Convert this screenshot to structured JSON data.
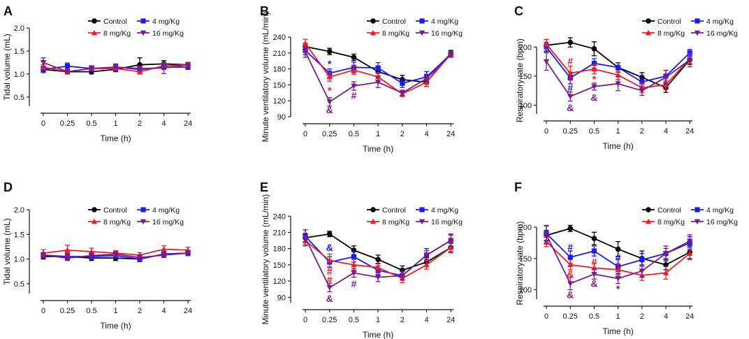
{
  "figure": {
    "legend_entries": [
      {
        "name": "Control",
        "color": "#000000",
        "marker": "circle"
      },
      {
        "name": "4 mg/Kg",
        "color": "#1a1aff",
        "marker": "square"
      },
      {
        "name": "8 mg/Kg",
        "color": "#ee1c25",
        "marker": "triangle-up"
      },
      {
        "name": "16 mg/Kg",
        "color": "#7b1b8a",
        "marker": "triangle-down"
      }
    ]
  },
  "chart_data": [
    {
      "panel": "A",
      "type": "line",
      "title": "",
      "xlabel": "Time (h)",
      "ylabel": "Tidal volume (mL)",
      "categories": [
        "0",
        "0.25",
        "0.5",
        "1",
        "2",
        "4",
        "24"
      ],
      "ylim": [
        0.3,
        2.0
      ],
      "yticks": [
        0.5,
        1.0,
        1.5,
        2.0
      ],
      "ytick_labels": [
        "0.5",
        "1.0",
        "1.5",
        "2.0"
      ],
      "legend_position": "top-right",
      "series": [
        {
          "name": "Control",
          "values": [
            1.1,
            1.05,
            1.05,
            1.1,
            1.2,
            1.22,
            1.2
          ],
          "errors": [
            0.05,
            0.05,
            0.05,
            0.05,
            0.15,
            0.07,
            0.05
          ]
        },
        {
          "name": "4 mg/Kg",
          "values": [
            1.1,
            1.17,
            1.12,
            1.15,
            1.1,
            1.15,
            1.15
          ],
          "errors": [
            0.07,
            0.07,
            0.06,
            0.05,
            0.05,
            0.05,
            0.05
          ]
        },
        {
          "name": "8 mg/Kg",
          "values": [
            1.15,
            1.05,
            1.12,
            1.12,
            1.05,
            1.18,
            1.2
          ],
          "errors": [
            0.05,
            0.05,
            0.05,
            0.05,
            0.05,
            0.05,
            0.05
          ]
        },
        {
          "name": "16 mg/Kg",
          "values": [
            1.25,
            1.05,
            1.12,
            1.15,
            1.12,
            1.13,
            1.2
          ],
          "errors": [
            0.1,
            0.05,
            0.05,
            0.07,
            0.05,
            0.12,
            0.05
          ]
        }
      ],
      "annotations": []
    },
    {
      "panel": "B",
      "type": "line",
      "title": "",
      "xlabel": "Time (h)",
      "ylabel": "Minute ventilatory volume (mL/min)",
      "categories": [
        "0",
        "0.25",
        "0.5",
        "1",
        "2",
        "4",
        "24"
      ],
      "ylim": [
        90,
        252
      ],
      "yticks": [
        90,
        120,
        150,
        180,
        210,
        240
      ],
      "ytick_labels": [
        "90",
        "120",
        "150",
        "180",
        "210",
        "240"
      ],
      "legend_position": "top-right",
      "series": [
        {
          "name": "Control",
          "values": [
            222,
            213,
            202,
            175,
            160,
            155,
            210
          ],
          "errors": [
            6,
            6,
            6,
            8,
            8,
            8,
            5
          ]
        },
        {
          "name": "4 mg/Kg",
          "values": [
            215,
            172,
            183,
            182,
            153,
            165,
            208
          ],
          "errors": [
            8,
            8,
            10,
            10,
            8,
            10,
            5
          ]
        },
        {
          "name": "8 mg/Kg",
          "values": [
            228,
            165,
            178,
            165,
            133,
            155,
            208
          ],
          "errors": [
            8,
            8,
            8,
            8,
            5,
            8,
            5
          ]
        },
        {
          "name": "16 mg/Kg",
          "values": [
            212,
            118,
            148,
            155,
            135,
            162,
            207
          ],
          "errors": [
            10,
            8,
            8,
            10,
            5,
            8,
            5
          ]
        }
      ],
      "annotations": [
        {
          "text": "*",
          "x": "0.25",
          "y": 190,
          "color": "#1a1aff"
        },
        {
          "text": "*",
          "x": "0.25",
          "y": 140,
          "color": "#ee1c25"
        },
        {
          "text": "&",
          "x": "0.25",
          "y": 103,
          "color": "#7b1b8a"
        },
        {
          "text": "#",
          "x": "0.5",
          "y": 130,
          "color": "#7b1b8a"
        }
      ]
    },
    {
      "panel": "C",
      "type": "line",
      "title": "",
      "xlabel": "Time (h)",
      "ylabel": "Respiratory rate (bpm)",
      "categories": [
        "0",
        "0.25",
        "0.5",
        "1",
        "2",
        "4",
        "24"
      ],
      "ylim": [
        85,
        228
      ],
      "yticks": [
        100,
        150,
        200
      ],
      "ytick_labels": [
        "100",
        "150",
        "200"
      ],
      "legend_position": "top-right",
      "series": [
        {
          "name": "Control",
          "values": [
            203,
            208,
            197,
            165,
            148,
            130,
            178
          ],
          "errors": [
            10,
            8,
            12,
            8,
            8,
            8,
            8
          ]
        },
        {
          "name": "4 mg/Kg",
          "values": [
            200,
            147,
            172,
            165,
            140,
            150,
            190
          ],
          "errors": [
            8,
            10,
            8,
            8,
            10,
            10,
            6
          ]
        },
        {
          "name": "8 mg/Kg",
          "values": [
            205,
            155,
            162,
            152,
            130,
            135,
            180
          ],
          "errors": [
            8,
            12,
            8,
            8,
            8,
            8,
            8
          ]
        },
        {
          "name": "16 mg/Kg",
          "values": [
            175,
            115,
            132,
            137,
            125,
            148,
            178
          ],
          "errors": [
            15,
            8,
            6,
            12,
            8,
            12,
            12
          ]
        }
      ],
      "annotations": [
        {
          "text": "#",
          "x": "0.25",
          "y": 176,
          "color": "#ee1c25"
        },
        {
          "text": "#",
          "x": "0.25",
          "y": 130,
          "color": "#1a1aff"
        },
        {
          "text": "&",
          "x": "0.25",
          "y": 96,
          "color": "#7b1b8a"
        },
        {
          "text": "*",
          "x": "0.5",
          "y": 145,
          "color": "#ee1c25"
        },
        {
          "text": "&",
          "x": "0.5",
          "y": 113,
          "color": "#7b1b8a"
        }
      ]
    },
    {
      "panel": "D",
      "type": "line",
      "title": "",
      "xlabel": "Time (h)",
      "ylabel": "Tidal volume (mL)",
      "categories": [
        "0",
        "0.25",
        "0.5",
        "1",
        "2",
        "4",
        "24"
      ],
      "ylim": [
        0.3,
        2.0
      ],
      "yticks": [
        0.5,
        1.0,
        1.5,
        2.0
      ],
      "ytick_labels": [
        "0.5",
        "1.0",
        "1.5",
        "2.0"
      ],
      "legend_position": "top-right",
      "series": [
        {
          "name": "Control",
          "values": [
            1.05,
            1.05,
            1.02,
            1.02,
            1.0,
            1.1,
            1.12
          ],
          "errors": [
            0.05,
            0.05,
            0.05,
            0.05,
            0.05,
            0.05,
            0.05
          ]
        },
        {
          "name": "4 mg/Kg",
          "values": [
            1.08,
            1.05,
            1.05,
            1.07,
            1.0,
            1.1,
            1.12
          ],
          "errors": [
            0.05,
            0.07,
            0.05,
            0.05,
            0.05,
            0.05,
            0.05
          ]
        },
        {
          "name": "8 mg/Kg",
          "values": [
            1.12,
            1.18,
            1.15,
            1.12,
            1.08,
            1.2,
            1.18
          ],
          "errors": [
            0.07,
            0.1,
            0.07,
            0.05,
            0.05,
            0.07,
            0.06
          ]
        },
        {
          "name": "16 mg/Kg",
          "values": [
            1.08,
            1.02,
            1.07,
            1.1,
            1.03,
            1.08,
            1.12
          ],
          "errors": [
            0.05,
            0.05,
            0.05,
            0.05,
            0.05,
            0.05,
            0.05
          ]
        }
      ],
      "annotations": []
    },
    {
      "panel": "E",
      "type": "line",
      "title": "",
      "xlabel": "Time (h)",
      "ylabel": "Minute ventilatory volume (mL/min)",
      "categories": [
        "0",
        "0.25",
        "0.5",
        "1",
        "2",
        "4",
        "24"
      ],
      "ylim": [
        80,
        252
      ],
      "yticks": [
        90,
        120,
        150,
        180,
        210,
        240
      ],
      "ytick_labels": [
        "90",
        "120",
        "150",
        "180",
        "210",
        "240"
      ],
      "legend_position": "top-right",
      "series": [
        {
          "name": "Control",
          "values": [
            200,
            207,
            177,
            160,
            140,
            155,
            182
          ],
          "errors": [
            8,
            5,
            8,
            8,
            8,
            8,
            8
          ]
        },
        {
          "name": "4 mg/Kg",
          "values": [
            203,
            155,
            165,
            140,
            130,
            168,
            195
          ],
          "errors": [
            12,
            10,
            10,
            8,
            8,
            12,
            12
          ]
        },
        {
          "name": "8 mg/Kg",
          "values": [
            195,
            158,
            150,
            145,
            125,
            150,
            182
          ],
          "errors": [
            8,
            12,
            10,
            8,
            8,
            8,
            10
          ]
        },
        {
          "name": "16 mg/Kg",
          "values": [
            200,
            108,
            135,
            127,
            130,
            168,
            195
          ],
          "errors": [
            15,
            8,
            8,
            8,
            8,
            8,
            10
          ]
        }
      ],
      "annotations": [
        {
          "text": "&",
          "x": "0.25",
          "y": 182,
          "color": "#1a1aff"
        },
        {
          "text": "#",
          "x": "0.25",
          "y": 138,
          "color": "#ee1c25"
        },
        {
          "text": "#",
          "x": "0.25",
          "y": 123,
          "color": "#ee1c25"
        },
        {
          "text": "&",
          "x": "0.25",
          "y": 88,
          "color": "#7b1b8a"
        },
        {
          "text": "#",
          "x": "0.5",
          "y": 115,
          "color": "#7b1b8a"
        }
      ]
    },
    {
      "panel": "F",
      "type": "line",
      "title": "",
      "xlabel": "Time (h)",
      "ylabel": "Respiratory rate (bpm)",
      "categories": [
        "0",
        "0.25",
        "0.5",
        "1",
        "2",
        "4",
        "24"
      ],
      "ylim": [
        85,
        228
      ],
      "yticks": [
        100,
        150,
        200
      ],
      "ytick_labels": [
        "100",
        "150",
        "200"
      ],
      "legend_position": "top-right",
      "series": [
        {
          "name": "Control",
          "values": [
            187,
            198,
            182,
            165,
            150,
            140,
            160
          ],
          "errors": [
            8,
            5,
            10,
            12,
            12,
            8,
            10
          ]
        },
        {
          "name": "4 mg/Kg",
          "values": [
            190,
            152,
            162,
            137,
            148,
            158,
            175
          ],
          "errors": [
            12,
            10,
            8,
            12,
            10,
            8,
            10
          ]
        },
        {
          "name": "8 mg/Kg",
          "values": [
            177,
            140,
            135,
            132,
            123,
            127,
            158
          ],
          "errors": [
            8,
            8,
            8,
            10,
            8,
            10,
            10
          ]
        },
        {
          "name": "16 mg/Kg",
          "values": [
            188,
            110,
            125,
            118,
            130,
            158,
            178
          ],
          "errors": [
            15,
            10,
            8,
            8,
            10,
            12,
            10
          ]
        }
      ],
      "annotations": [
        {
          "text": "#",
          "x": "0.25",
          "y": 168,
          "color": "#1a1aff"
        },
        {
          "text": "&",
          "x": "0.25",
          "y": 125,
          "color": "#ee1c25"
        },
        {
          "text": "&",
          "x": "0.25",
          "y": 92,
          "color": "#7b1b8a"
        },
        {
          "text": "#",
          "x": "0.5",
          "y": 145,
          "color": "#ee1c25"
        },
        {
          "text": "&",
          "x": "0.5",
          "y": 110,
          "color": "#7b1b8a"
        },
        {
          "text": "#",
          "x": "1",
          "y": 152,
          "color": "#1a1aff"
        },
        {
          "text": "*",
          "x": "1",
          "y": 102,
          "color": "#7b1b8a"
        }
      ]
    }
  ]
}
